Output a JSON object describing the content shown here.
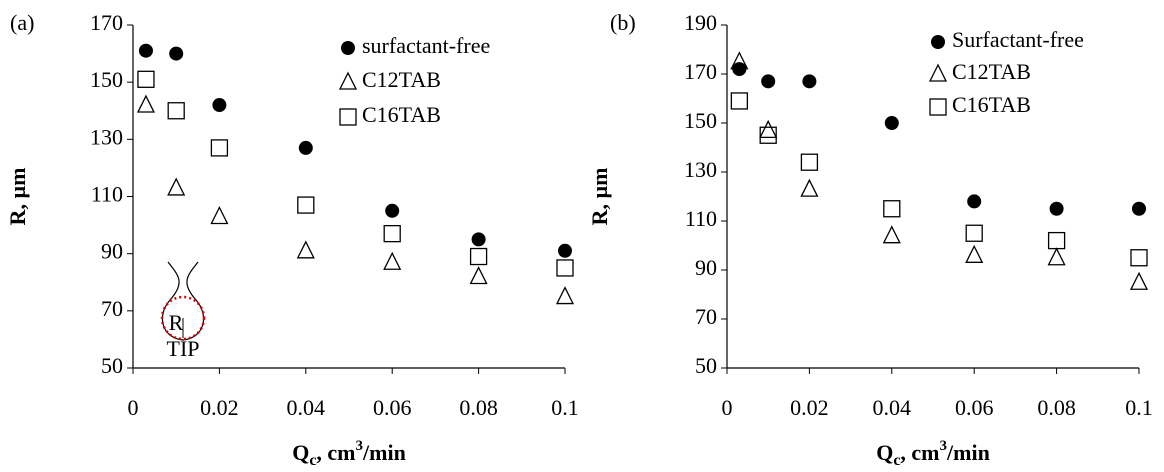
{
  "chart_data": [
    {
      "type": "scatter",
      "panel_label": "(a)",
      "y_label": "R, µm",
      "x_label_parts": [
        "Q",
        "c",
        ", cm",
        "3",
        "/min"
      ],
      "x": [
        0.003,
        0.01,
        0.02,
        0.04,
        0.06,
        0.08,
        0.1
      ],
      "xlim": [
        0,
        0.1
      ],
      "xticks": [
        0,
        0.02,
        0.04,
        0.06,
        0.08,
        0.1
      ],
      "ylim": [
        50,
        170
      ],
      "yticks": [
        50,
        70,
        90,
        110,
        130,
        150,
        170
      ],
      "legend": "upper right",
      "annotations": [
        "R",
        "TIP"
      ],
      "series": [
        {
          "name": "surfactant-free",
          "color": "#000000",
          "marker": "filled-circle",
          "values": [
            161,
            160,
            142,
            127,
            105,
            95,
            91
          ]
        },
        {
          "name": "C12TAB",
          "color": "#000000",
          "marker": "open-triangle",
          "values": [
            142,
            113,
            103,
            91,
            87,
            82,
            75
          ]
        },
        {
          "name": "C16TAB",
          "color": "#000000",
          "marker": "open-square",
          "values": [
            151,
            140,
            127,
            107,
            97,
            89,
            85
          ]
        }
      ]
    },
    {
      "type": "scatter",
      "panel_label": "(b)",
      "y_label": "R, µm",
      "x_label_parts": [
        "Q",
        "c",
        ", cm",
        "3",
        "/min"
      ],
      "x": [
        0.003,
        0.01,
        0.02,
        0.04,
        0.06,
        0.08,
        0.1
      ],
      "xlim": [
        0,
        0.1
      ],
      "xticks": [
        0,
        0.02,
        0.04,
        0.06,
        0.08,
        0.1
      ],
      "ylim": [
        50,
        190
      ],
      "yticks": [
        50,
        70,
        90,
        110,
        130,
        150,
        170,
        190
      ],
      "legend": "upper right",
      "series": [
        {
          "name": "Surfactant-free",
          "color": "#000000",
          "marker": "filled-circle",
          "values": [
            172,
            167,
            167,
            150,
            118,
            115,
            115
          ]
        },
        {
          "name": "C12TAB",
          "color": "#000000",
          "marker": "open-triangle",
          "values": [
            175,
            147,
            123,
            104,
            96,
            95,
            85
          ]
        },
        {
          "name": "C16TAB",
          "color": "#000000",
          "marker": "open-square",
          "values": [
            159,
            145,
            134,
            115,
            105,
            102,
            95
          ]
        }
      ]
    }
  ]
}
